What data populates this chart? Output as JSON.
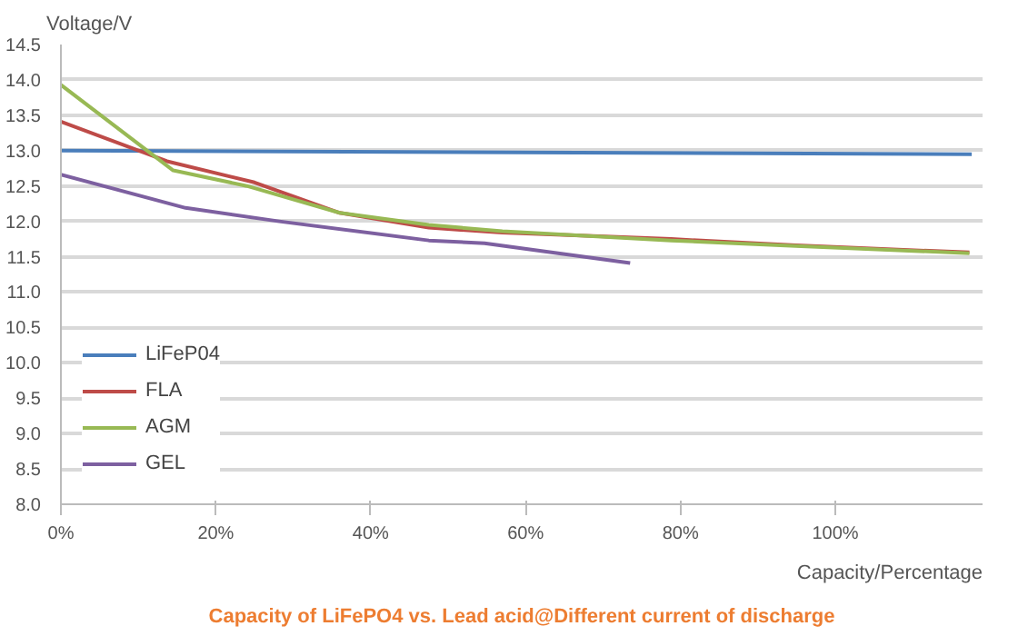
{
  "chart_data": {
    "type": "line",
    "title": "Capacity of LiFePO4 vs. Lead acid@Different current of discharge",
    "xlabel": "Capacity/Percentage",
    "ylabel": "Voltage/V",
    "xlim": [
      0,
      119
    ],
    "xticks": [
      {
        "value": 0,
        "label": "0%"
      },
      {
        "value": 20,
        "label": "20%"
      },
      {
        "value": 40,
        "label": "40%"
      },
      {
        "value": 60,
        "label": "60%"
      },
      {
        "value": 80,
        "label": "80%"
      },
      {
        "value": 100,
        "label": "100%"
      }
    ],
    "ylim": [
      8.0,
      14.5
    ],
    "yticks": [
      {
        "value": 8.0,
        "label": "8.0"
      },
      {
        "value": 8.5,
        "label": "8.5"
      },
      {
        "value": 9.0,
        "label": "9.0"
      },
      {
        "value": 9.5,
        "label": "9.5"
      },
      {
        "value": 10.0,
        "label": "10.0"
      },
      {
        "value": 10.5,
        "label": "10.5"
      },
      {
        "value": 11.0,
        "label": "11.0"
      },
      {
        "value": 11.5,
        "label": "11.5"
      },
      {
        "value": 12.0,
        "label": "12.0"
      },
      {
        "value": 12.5,
        "label": "12.5"
      },
      {
        "value": 13.0,
        "label": "13.0"
      },
      {
        "value": 13.5,
        "label": "13.5"
      },
      {
        "value": 14.0,
        "label": "14.0"
      },
      {
        "value": 14.5,
        "label": "14.5"
      }
    ],
    "grid": "y",
    "legend": "bottom left",
    "marker": "none",
    "line_style": "solid",
    "series": [
      {
        "name": "LiFeP04",
        "color": "#4a7ebb",
        "x": [
          0,
          117.6
        ],
        "values": [
          13.0,
          12.95
        ]
      },
      {
        "name": "FLA",
        "color": "#be4b48",
        "x": [
          0,
          13.7,
          25,
          36,
          47.5,
          57,
          78.8,
          94.9,
          117.3
        ],
        "values": [
          13.41,
          12.85,
          12.55,
          12.12,
          11.91,
          11.84,
          11.75,
          11.66,
          11.56
        ]
      },
      {
        "name": "AGM",
        "color": "#98b954",
        "x": [
          0,
          14.5,
          24,
          36,
          47.5,
          57,
          78.8,
          94.9,
          117.3
        ],
        "values": [
          13.93,
          12.72,
          12.5,
          12.12,
          11.95,
          11.86,
          11.73,
          11.65,
          11.55
        ]
      },
      {
        "name": "GEL",
        "color": "#7d60a0",
        "x": [
          0,
          16.1,
          28.2,
          47.5,
          54.7,
          73.5
        ],
        "values": [
          12.66,
          12.19,
          12.0,
          11.73,
          11.69,
          11.41
        ]
      }
    ]
  }
}
